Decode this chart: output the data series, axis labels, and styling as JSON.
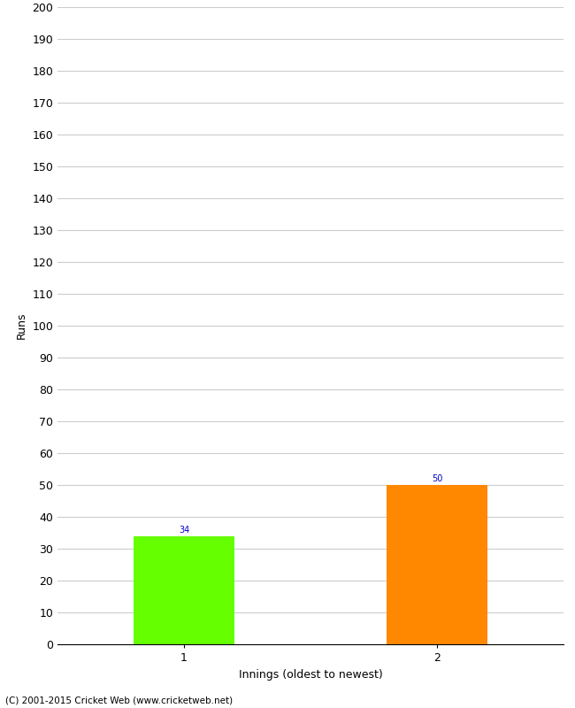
{
  "categories": [
    "1",
    "2"
  ],
  "values": [
    34,
    50
  ],
  "bar_colors": [
    "#66ff00",
    "#ff8800"
  ],
  "xlabel": "Innings (oldest to newest)",
  "ylabel": "Runs",
  "ylim": [
    0,
    200
  ],
  "yticks": [
    0,
    10,
    20,
    30,
    40,
    50,
    60,
    70,
    80,
    90,
    100,
    110,
    120,
    130,
    140,
    150,
    160,
    170,
    180,
    190,
    200
  ],
  "label_color": "#0000cc",
  "label_fontsize": 7,
  "footer": "(C) 2001-2015 Cricket Web (www.cricketweb.net)",
  "background_color": "#ffffff",
  "grid_color": "#cccccc",
  "bar_positions": [
    1,
    3
  ],
  "xlim": [
    0,
    4
  ],
  "bar_width": 0.8
}
